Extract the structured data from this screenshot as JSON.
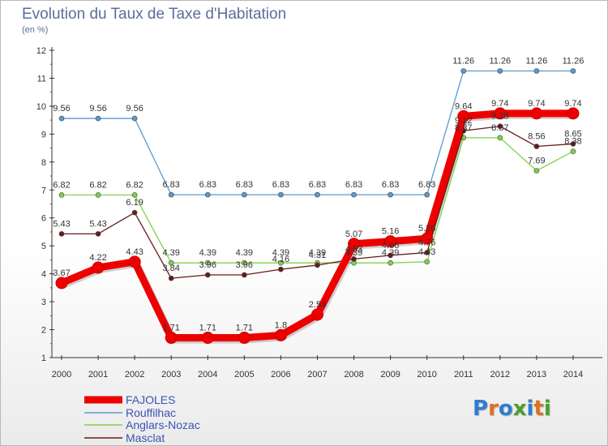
{
  "chart_data": {
    "type": "line",
    "title": "Evolution du Taux de Taxe d'Habitation",
    "subtitle": "(en %)",
    "x": [
      "2000",
      "2001",
      "2002",
      "2003",
      "2004",
      "2005",
      "2006",
      "2007",
      "2008",
      "2009",
      "2010",
      "2011",
      "2012",
      "2013",
      "2014"
    ],
    "ylim": [
      1,
      12
    ],
    "yticks": [
      1,
      2,
      3,
      4,
      5,
      6,
      7,
      8,
      9,
      10,
      11,
      12
    ],
    "grid": false,
    "legend_position": "bottom-left",
    "series": [
      {
        "name": "Rouffilhac",
        "color": "#5a9ad0",
        "values": [
          9.56,
          9.56,
          9.56,
          6.83,
          6.83,
          6.83,
          6.83,
          6.83,
          6.83,
          6.83,
          6.83,
          11.26,
          11.26,
          11.26,
          11.26
        ],
        "labels": [
          "9.56",
          "9.56",
          "9.56",
          "6.83",
          "6.83",
          "6.83",
          "6.83",
          "6.83",
          "6.83",
          "6.83",
          "6.83",
          "11.26",
          "11.26",
          "11.26",
          "11.26"
        ]
      },
      {
        "name": "Anglars-Nozac",
        "color": "#7fd24a",
        "values": [
          6.82,
          6.82,
          6.82,
          4.39,
          4.39,
          4.39,
          4.39,
          4.39,
          4.39,
          4.39,
          4.43,
          8.87,
          8.87,
          7.69,
          8.38
        ],
        "labels": [
          "6.82",
          "6.82",
          "6.82",
          "4.39",
          "4.39",
          "4.39",
          "4.39",
          "4.39",
          "4.39",
          "4.39",
          "4.43",
          "8.87",
          "8.87",
          "7.69",
          "8.38"
        ]
      },
      {
        "name": "Masclat",
        "color": "#6a1a1a",
        "values": [
          5.43,
          5.43,
          6.19,
          3.84,
          3.96,
          3.96,
          4.16,
          4.31,
          4.53,
          4.66,
          4.76,
          9.12,
          9.28,
          8.56,
          8.65
        ],
        "labels": [
          "5.43",
          "5.43",
          "6.19",
          "3.84",
          "3.96",
          "3.96",
          "4.16",
          "4.31",
          "4.53",
          "4.66",
          "4.76",
          "9.12",
          "9.28",
          "8.56",
          "8.65"
        ]
      },
      {
        "name": "FAJOLES",
        "color": "#ee0000",
        "values": [
          3.67,
          4.22,
          4.43,
          1.71,
          1.71,
          1.71,
          1.8,
          2.54,
          5.07,
          5.16,
          5.26,
          9.64,
          9.74,
          9.74,
          9.74
        ],
        "labels": [
          "3.67",
          "4.22",
          "4.43",
          "1.71",
          "1.71",
          "1.71",
          "1.8",
          "2.54",
          "5.07",
          "5.16",
          "5.26",
          "9.64",
          "9.74",
          "9.74",
          "9.74"
        ]
      }
    ],
    "legend": [
      "FAJOLES",
      "Rouffilhac",
      "Anglars-Nozac",
      "Masclat"
    ]
  },
  "branding": {
    "logo_text": "Proxiti",
    "letter_colors": [
      "#2e7ed0",
      "#e07020",
      "#2e7ed0",
      "#4aa02c",
      "#2e7ed0",
      "#e07020",
      "#4aa02c"
    ]
  }
}
